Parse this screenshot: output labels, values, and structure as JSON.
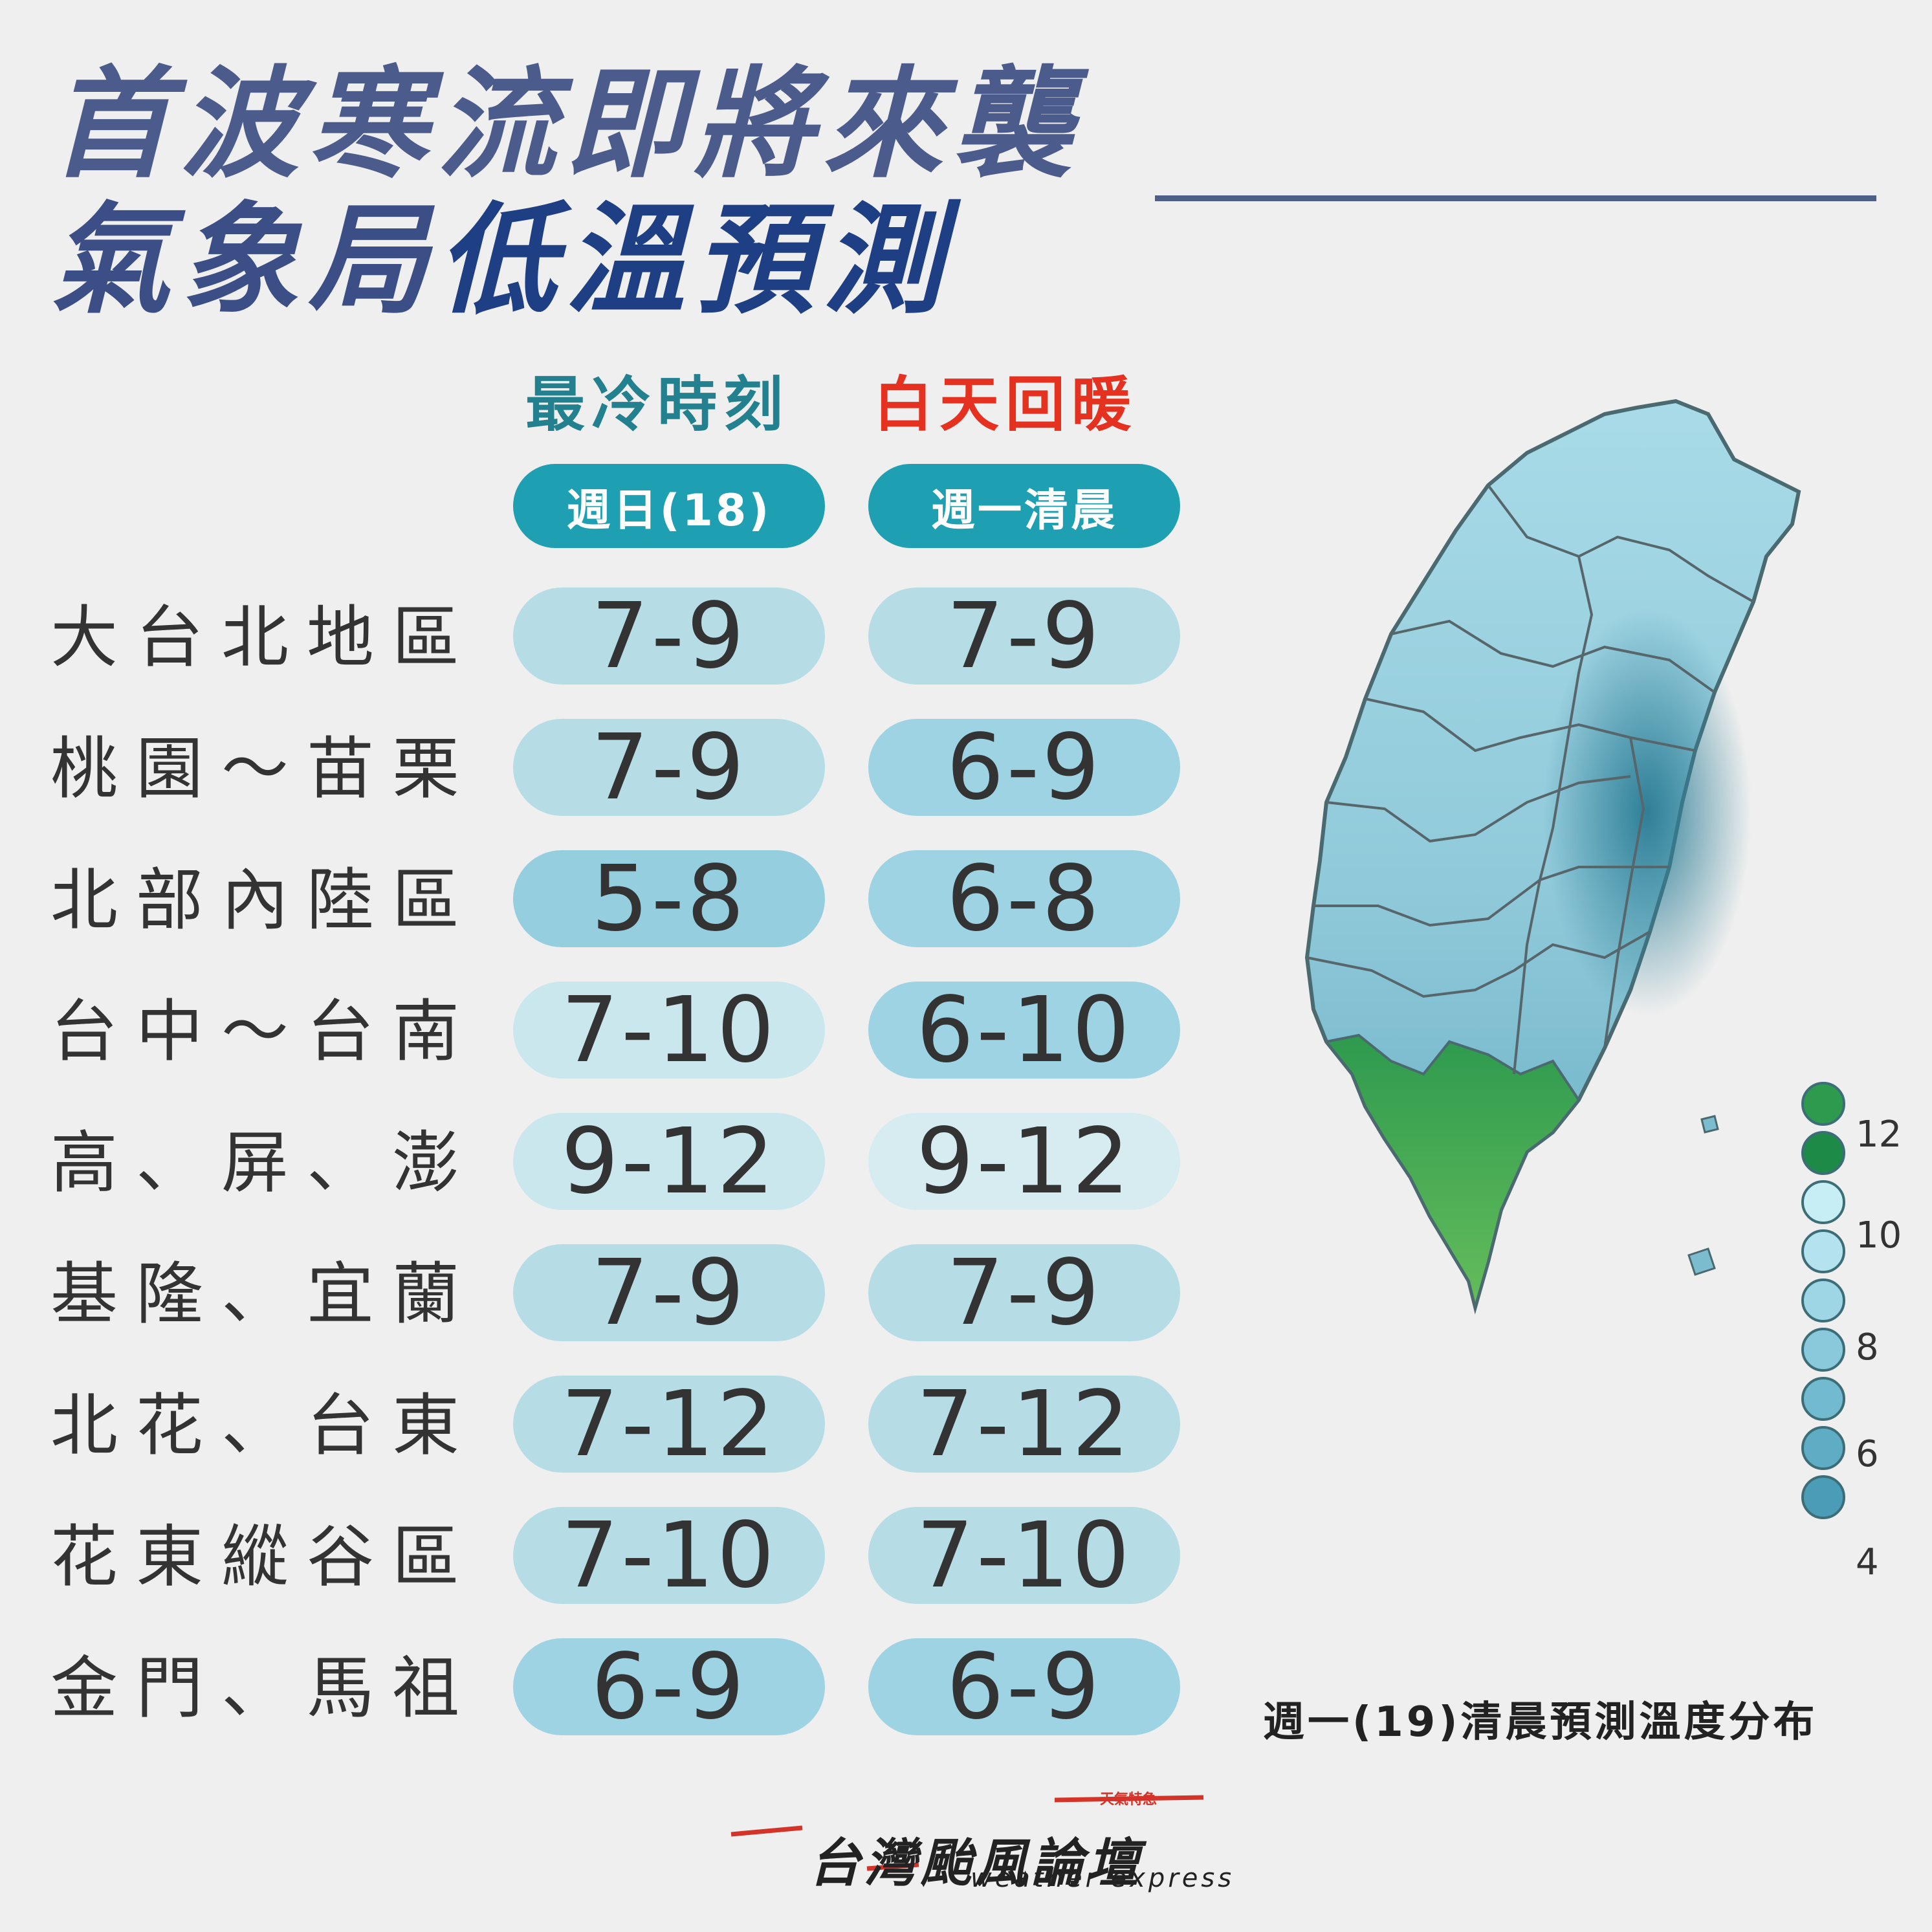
{
  "title": {
    "line1": "首波寒流即將來襲",
    "line2_a": "氣象局",
    "line2_b": "低溫預測"
  },
  "columns": {
    "coldest_heading": "最冷時刻",
    "warming_heading": "白天回暖",
    "coldest_day": "週日(18)",
    "warming_day": "週一清晨"
  },
  "rows": [
    {
      "region": "大台北地區",
      "sunday": "7-9",
      "monday": "7-9",
      "sunday_color": "#b6dde6",
      "monday_color": "#b6dde6"
    },
    {
      "region": "桃園～苗栗",
      "sunday": "7-9",
      "monday": "6-9",
      "sunday_color": "#b6dde6",
      "monday_color": "#9dd3e2"
    },
    {
      "region": "北部內陸區",
      "sunday": "5-8",
      "monday": "6-8",
      "sunday_color": "#95cfdf",
      "monday_color": "#9dd3e2"
    },
    {
      "region": "台中～台南",
      "sunday": "7-10",
      "monday": "6-10",
      "sunday_color": "#cbe7ee",
      "monday_color": "#9dd3e2"
    },
    {
      "region": "高、屏、澎",
      "sunday": "9-12",
      "monday": "9-12",
      "sunday_color": "#cbe7ee",
      "monday_color": "#d7ecf1"
    },
    {
      "region": "基隆、宜蘭",
      "sunday": "7-9",
      "monday": "7-9",
      "sunday_color": "#b6dde6",
      "monday_color": "#b6dde6"
    },
    {
      "region": "北花、台東",
      "sunday": "7-12",
      "monday": "7-12",
      "sunday_color": "#b6dde6",
      "monday_color": "#b6dde6"
    },
    {
      "region": "花東縱谷區",
      "sunday": "7-10",
      "monday": "7-10",
      "sunday_color": "#b6dde6",
      "monday_color": "#b6dde6"
    },
    {
      "region": "金門、馬祖",
      "sunday": "6-9",
      "monday": "6-9",
      "sunday_color": "#9dd3e2",
      "monday_color": "#9dd3e2"
    }
  ],
  "map": {
    "caption": "週一(19)清晨預測溫度分布",
    "legend_labels": [
      "12",
      "10",
      "8",
      "6",
      "4"
    ],
    "legend_colors": [
      "#2e9a4e",
      "#1e8a48",
      "#c8eef5",
      "#b4e3ef",
      "#9fd6e6",
      "#89c9db",
      "#72bacf",
      "#5fadc4",
      "#4b9cb6"
    ]
  },
  "logo": {
    "name": "台灣颱風論壇",
    "sub": "weather express",
    "tag": "天氣特急"
  }
}
